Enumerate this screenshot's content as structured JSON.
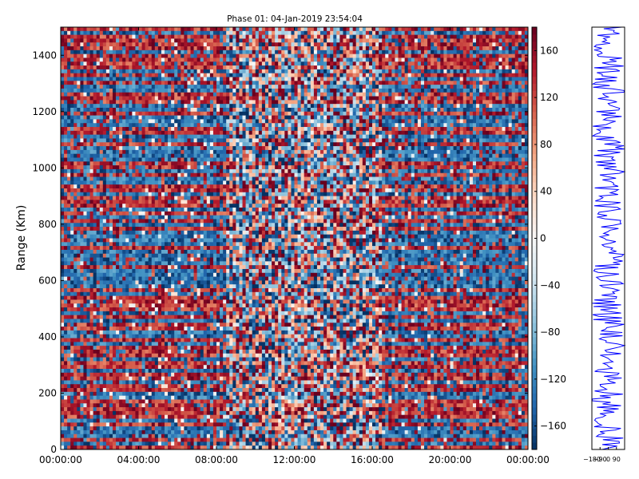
{
  "chart_data": [
    {
      "type": "heatmap",
      "title": "Phase 01: 04-Jan-2019 23:54:04",
      "xlabel": "",
      "ylabel": "Range (Km)",
      "x_ticks": [
        "00:00:00",
        "04:00:00",
        "08:00:00",
        "12:00:00",
        "16:00:00",
        "20:00:00",
        "00:00:00"
      ],
      "xlim_hours": [
        0,
        24
      ],
      "y_ticks": [
        0,
        200,
        400,
        600,
        800,
        1000,
        1200,
        1400
      ],
      "ylim": [
        0,
        1500
      ],
      "value_range": [
        -180,
        180
      ],
      "colorbar": {
        "ticks": [
          160,
          120,
          80,
          40,
          0,
          -40,
          -80,
          -120,
          -160
        ],
        "tick_labels": [
          "160",
          "120",
          "80",
          "40",
          "0",
          "−40",
          "−80",
          "−120",
          "−160"
        ],
        "colormap": "RdBu_r",
        "colors": [
          "#053061",
          "#2166ac",
          "#4393c3",
          "#92c5de",
          "#d1e5f0",
          "#f7f7f7",
          "#fddbc7",
          "#f4a582",
          "#d6604d",
          "#b2182b",
          "#67001f"
        ]
      },
      "grid": false
    },
    {
      "type": "line",
      "title": "",
      "xlabel": "",
      "ylabel": "",
      "x_tick_labels": [
        "−180",
        "−90",
        "0",
        "90"
      ],
      "xlim": [
        -180,
        180
      ],
      "ylim": [
        0,
        1500
      ],
      "series_color": "#0000ff"
    }
  ]
}
